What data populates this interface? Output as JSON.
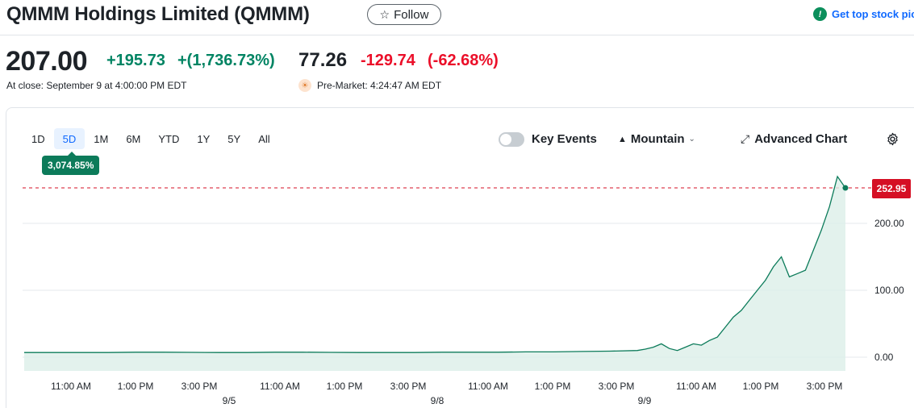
{
  "header": {
    "title": "QMMM Holdings Limited (QMMM)",
    "follow_label": "Follow",
    "promo_text": "Get top stock pic"
  },
  "quote": {
    "price": "207.00",
    "change": "+195.73",
    "change_pct": "+(1,736.73%)",
    "close_label": "At close: September 9 at 4:00:00 PM EDT",
    "pre_price": "77.26",
    "pre_change": "-129.74",
    "pre_change_pct": "(-62.68%)",
    "pre_label": "Pre-Market: 4:24:47 AM EDT"
  },
  "chart_controls": {
    "ranges": [
      "1D",
      "5D",
      "1M",
      "6M",
      "YTD",
      "1Y",
      "5Y",
      "All"
    ],
    "active_range": "5D",
    "performance_badge": "3,074.85%",
    "key_events_label": "Key Events",
    "key_events_on": false,
    "chart_type_label": "Mountain",
    "advanced_label": "Advanced Chart"
  },
  "colors": {
    "up": "#008463",
    "down": "#eb0f29",
    "line": "#0c7b5a",
    "fill": "#dcefe8",
    "accent": "#0f69ff",
    "price_tag": "#d50f24"
  },
  "chart_data": {
    "type": "area",
    "yticks": [
      "0.00",
      "100.00",
      "200.00"
    ],
    "ytick_values": [
      0,
      100,
      200
    ],
    "ylim": [
      -5,
      260
    ],
    "last_price_label": "252.95",
    "last_price": 252.95,
    "xtick_times": [
      "11:00 AM",
      "1:00 PM",
      "3:00 PM",
      "11:00 AM",
      "1:00 PM",
      "3:00 PM",
      "11:00 AM",
      "1:00 PM",
      "3:00 PM",
      "11:00 AM",
      "1:00 PM",
      "3:00 PM"
    ],
    "xtick_dates": [
      "9/5",
      "9/8",
      "9/9"
    ],
    "series": [
      {
        "values": [
          7,
          7,
          7,
          7,
          7.5,
          7.5,
          7.2,
          7,
          7,
          7.5,
          7.5,
          7.2,
          7,
          7,
          7,
          7.5,
          7.5,
          7.5,
          8,
          8,
          8.5,
          9,
          10,
          12,
          15,
          20,
          13,
          10,
          15,
          20,
          18,
          25,
          30,
          45,
          60,
          70,
          85,
          100,
          115,
          135,
          150,
          120,
          125,
          130,
          160,
          190,
          225,
          270,
          252.95
        ]
      }
    ]
  }
}
